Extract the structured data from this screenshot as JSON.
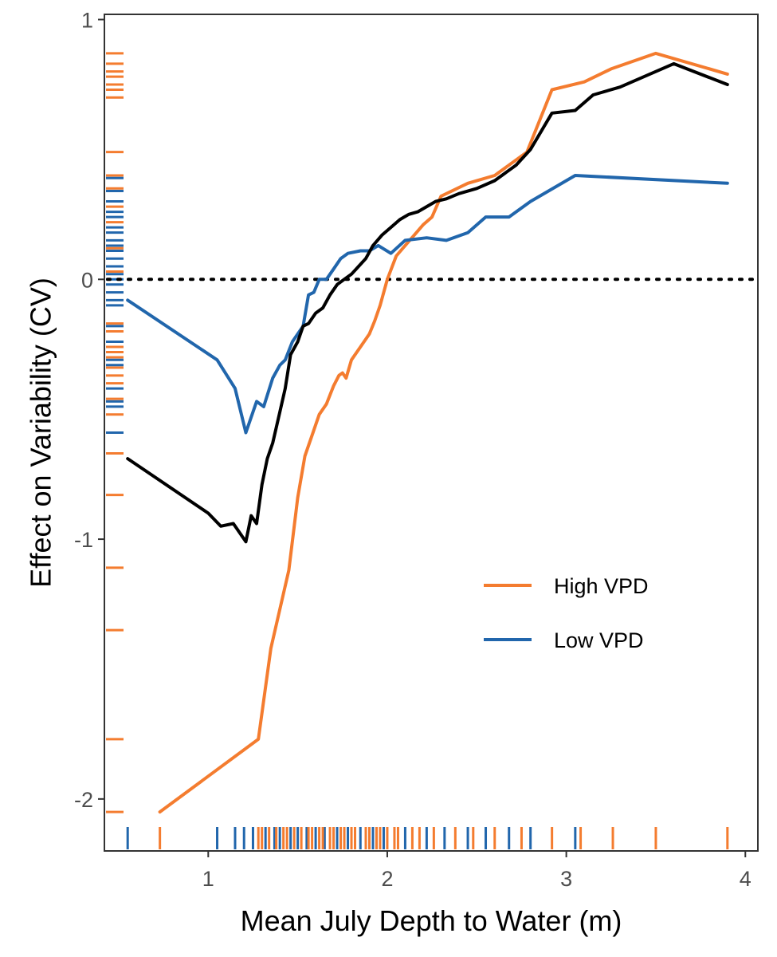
{
  "colors": {
    "high_vpd": "#F47C2F",
    "low_vpd": "#2166AC",
    "overall": "#000000",
    "axis": "#333333"
  },
  "chart_data": {
    "type": "line",
    "title": "",
    "xlabel": "Mean July Depth to Water (m)",
    "ylabel": "Effect on Variability (CV)",
    "xlim": [
      0.42,
      4.07
    ],
    "ylim": [
      -2.2,
      1.02
    ],
    "x_ticks": [
      1,
      2,
      3,
      4
    ],
    "x_tick_labels": [
      "1",
      "2",
      "3",
      "4"
    ],
    "y_ticks": [
      1,
      0,
      -1,
      -2
    ],
    "y_tick_labels": [
      "1",
      "0",
      "-1",
      "-2"
    ],
    "reference_line": {
      "y": 0,
      "style": "dotted"
    },
    "grid": false,
    "legend": {
      "position": "bottom-right",
      "entries": [
        "High VPD",
        "Low VPD"
      ]
    },
    "series": [
      {
        "name": "High VPD",
        "color_key": "high_vpd",
        "x": [
          0.73,
          1.28,
          1.35,
          1.45,
          1.5,
          1.54,
          1.58,
          1.62,
          1.66,
          1.7,
          1.73,
          1.75,
          1.77,
          1.8,
          1.85,
          1.9,
          1.93,
          1.96,
          2.0,
          2.05,
          2.1,
          2.15,
          2.2,
          2.25,
          2.3,
          2.45,
          2.6,
          2.78,
          2.92,
          3.1,
          3.25,
          3.5,
          3.9
        ],
        "y": [
          -2.05,
          -1.77,
          -1.42,
          -1.12,
          -0.84,
          -0.68,
          -0.6,
          -0.52,
          -0.48,
          -0.41,
          -0.37,
          -0.36,
          -0.38,
          -0.31,
          -0.26,
          -0.21,
          -0.16,
          -0.1,
          0.0,
          0.09,
          0.13,
          0.17,
          0.21,
          0.24,
          0.32,
          0.37,
          0.4,
          0.49,
          0.73,
          0.76,
          0.81,
          0.87,
          0.79
        ]
      },
      {
        "name": "Low VPD",
        "color_key": "low_vpd",
        "x": [
          0.55,
          1.05,
          1.15,
          1.21,
          1.27,
          1.31,
          1.36,
          1.4,
          1.43,
          1.47,
          1.5,
          1.53,
          1.56,
          1.59,
          1.62,
          1.66,
          1.7,
          1.74,
          1.78,
          1.85,
          1.9,
          1.95,
          2.02,
          2.1,
          2.22,
          2.33,
          2.45,
          2.55,
          2.68,
          2.8,
          3.05,
          3.9
        ],
        "y": [
          -0.08,
          -0.31,
          -0.42,
          -0.59,
          -0.47,
          -0.49,
          -0.38,
          -0.33,
          -0.31,
          -0.24,
          -0.21,
          -0.18,
          -0.06,
          -0.05,
          0.0,
          0.0,
          0.04,
          0.08,
          0.1,
          0.11,
          0.11,
          0.13,
          0.1,
          0.15,
          0.16,
          0.15,
          0.18,
          0.24,
          0.24,
          0.3,
          0.4,
          0.37
        ]
      },
      {
        "name": "",
        "color_key": "overall",
        "x": [
          0.55,
          1.0,
          1.07,
          1.14,
          1.21,
          1.24,
          1.27,
          1.3,
          1.33,
          1.36,
          1.4,
          1.43,
          1.46,
          1.5,
          1.53,
          1.56,
          1.6,
          1.64,
          1.68,
          1.72,
          1.76,
          1.8,
          1.84,
          1.88,
          1.92,
          1.97,
          2.02,
          2.07,
          2.12,
          2.17,
          2.22,
          2.27,
          2.33,
          2.4,
          2.5,
          2.6,
          2.72,
          2.8,
          2.92,
          3.05,
          3.15,
          3.3,
          3.6,
          3.9
        ],
        "y": [
          -0.69,
          -0.9,
          -0.95,
          -0.94,
          -1.01,
          -0.91,
          -0.94,
          -0.79,
          -0.69,
          -0.63,
          -0.51,
          -0.42,
          -0.29,
          -0.24,
          -0.18,
          -0.17,
          -0.13,
          -0.11,
          -0.06,
          -0.02,
          0.0,
          0.02,
          0.05,
          0.08,
          0.13,
          0.17,
          0.2,
          0.23,
          0.25,
          0.26,
          0.28,
          0.3,
          0.31,
          0.33,
          0.35,
          0.38,
          0.44,
          0.5,
          0.64,
          0.65,
          0.71,
          0.74,
          0.83,
          0.75
        ]
      }
    ],
    "rug_x": [
      {
        "series": "Low VPD",
        "values": [
          0.55,
          1.05,
          1.15,
          1.2,
          1.25,
          1.32,
          1.37,
          1.4,
          1.46,
          1.5,
          1.55,
          1.6,
          1.65,
          1.72,
          1.78,
          1.85,
          1.92,
          1.98,
          2.1,
          2.22,
          2.32,
          2.45,
          2.55,
          2.68,
          2.8,
          3.05
        ]
      },
      {
        "series": "High VPD",
        "values": [
          0.73,
          1.28,
          1.3,
          1.34,
          1.38,
          1.42,
          1.44,
          1.48,
          1.52,
          1.56,
          1.58,
          1.62,
          1.64,
          1.68,
          1.7,
          1.74,
          1.76,
          1.8,
          1.82,
          1.88,
          1.9,
          1.94,
          1.96,
          2.0,
          2.04,
          2.06,
          2.14,
          2.18,
          2.26,
          2.38,
          2.48,
          2.6,
          2.75,
          2.92,
          3.08,
          3.26,
          3.5,
          3.9
        ]
      }
    ],
    "rug_y": [
      {
        "series": "High VPD",
        "values": [
          0.87,
          0.83,
          0.8,
          0.78,
          0.75,
          0.73,
          0.7,
          0.49,
          0.4,
          0.35,
          0.28,
          0.22,
          0.12,
          0.03,
          -0.17,
          -0.2,
          -0.26,
          -0.28,
          -0.3,
          -0.34,
          -0.37,
          -0.4,
          -0.46,
          -0.52,
          -0.59,
          -0.67,
          -0.83,
          -1.11,
          -1.35,
          -1.77,
          -2.05
        ]
      },
      {
        "series": "Low VPD",
        "values": [
          0.39,
          0.34,
          0.3,
          0.26,
          0.24,
          0.2,
          0.18,
          0.15,
          0.13,
          0.11,
          0.08,
          0.05,
          0.02,
          0.0,
          -0.02,
          -0.05,
          -0.08,
          -0.1,
          -0.18,
          -0.24,
          -0.31,
          -0.33,
          -0.42,
          -0.47,
          -0.49,
          -0.59
        ]
      }
    ]
  }
}
